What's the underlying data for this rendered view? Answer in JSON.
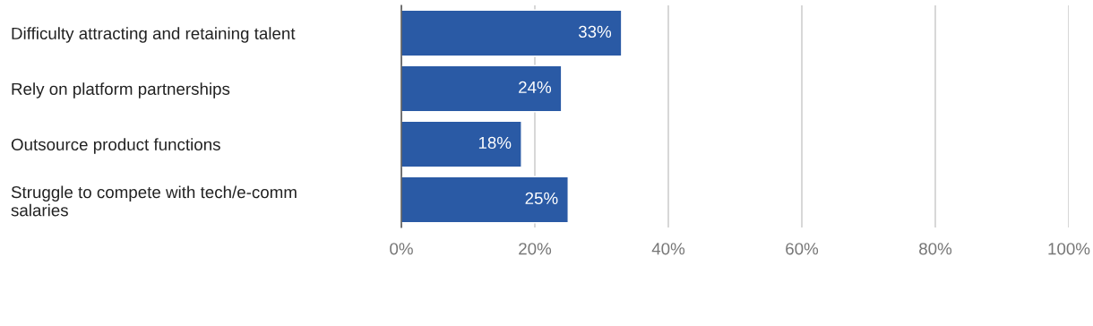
{
  "chart_data": {
    "type": "bar",
    "orientation": "horizontal",
    "categories": [
      "Difficulty attracting and retaining talent",
      "Rely on platform partnerships",
      "Outsource product functions",
      "Struggle to compete with tech/e-comm salaries"
    ],
    "values": [
      33,
      24,
      18,
      25
    ],
    "value_labels": [
      "33%",
      "24%",
      "18%",
      "25%"
    ],
    "color": "#2a5aa5",
    "xlim": [
      0,
      100
    ],
    "xticks": [
      {
        "value": 0,
        "label": "0%"
      },
      {
        "value": 20,
        "label": "20%"
      },
      {
        "value": 40,
        "label": "40%"
      },
      {
        "value": 60,
        "label": "60%"
      },
      {
        "value": 80,
        "label": "80%"
      },
      {
        "value": 100,
        "label": "100%"
      }
    ],
    "grid": "x"
  }
}
